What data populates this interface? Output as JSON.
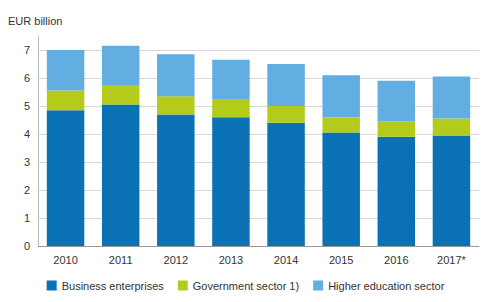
{
  "chart_data": {
    "type": "bar",
    "stacked": true,
    "y_label": "EUR billion",
    "categories": [
      "2010",
      "2011",
      "2012",
      "2013",
      "2014",
      "2015",
      "2016",
      "2017*"
    ],
    "series": [
      {
        "name": "Business enterprises",
        "color": "#0a72b4",
        "values": [
          4.85,
          5.05,
          4.7,
          4.6,
          4.4,
          4.05,
          3.9,
          3.95
        ]
      },
      {
        "name": "Government sector 1)",
        "color": "#b4cb1c",
        "values": [
          0.7,
          0.7,
          0.65,
          0.65,
          0.6,
          0.55,
          0.55,
          0.6
        ]
      },
      {
        "name": "Higher education sector",
        "color": "#62aee3",
        "values": [
          1.45,
          1.4,
          1.5,
          1.4,
          1.5,
          1.5,
          1.45,
          1.5
        ]
      }
    ],
    "ylim": [
      0,
      7.5
    ],
    "yticks": [
      0,
      1,
      2,
      3,
      4,
      5,
      6,
      7
    ],
    "grid": true,
    "legend": "bottom"
  }
}
